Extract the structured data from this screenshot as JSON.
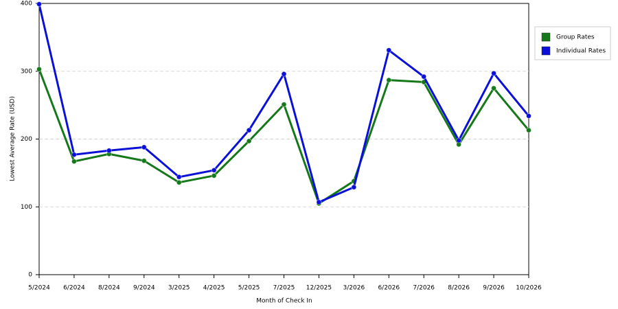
{
  "chart_data": {
    "type": "line",
    "x_label": "Month of Check In",
    "y_label": "Lowest Average Rate (USD)",
    "categories": [
      "5/2024",
      "6/2024",
      "8/2024",
      "9/2024",
      "3/2025",
      "4/2025",
      "5/2025",
      "7/2025",
      "12/2025",
      "3/2026",
      "6/2026",
      "7/2026",
      "8/2026",
      "9/2026",
      "10/2026"
    ],
    "series": [
      {
        "name": "Group Rates",
        "color": "#15781a",
        "values": [
          303,
          167,
          178,
          168,
          136,
          146,
          197,
          251,
          105,
          138,
          287,
          284,
          192,
          275,
          213
        ]
      },
      {
        "name": "Individual Rates",
        "color": "#0a10d8",
        "values": [
          399,
          177,
          183,
          188,
          144,
          154,
          213,
          296,
          107,
          129,
          331,
          292,
          198,
          297,
          234
        ]
      }
    ],
    "ylim": [
      0,
      400
    ],
    "yticks": [
      0,
      100,
      200,
      300,
      400
    ],
    "grid": true
  }
}
